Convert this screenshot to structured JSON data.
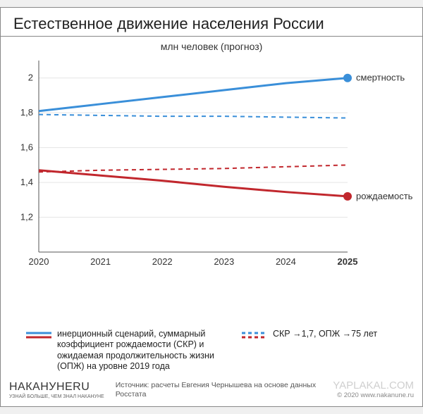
{
  "title": "Естественное движение населения России",
  "subtitle": "млн человек (прогноз)",
  "chart": {
    "type": "line",
    "background_color": "#ffffff",
    "grid_color": "#e5e5e5",
    "axis_color": "#555555",
    "x": {
      "min": 2020,
      "max": 2025,
      "ticks": [
        2020,
        2021,
        2022,
        2023,
        2024,
        2025
      ]
    },
    "y": {
      "min": 1.0,
      "max": 2.1,
      "ticks": [
        1.2,
        1.4,
        1.6,
        1.8,
        2.0
      ],
      "labels": [
        "1,2",
        "1,4",
        "1,6",
        "1,8",
        "2"
      ]
    },
    "series": [
      {
        "id": "death_inertial",
        "label": "смертность",
        "color": "#3a8fd9",
        "width": 3,
        "dash": "none",
        "marker_end": true,
        "marker_r": 6,
        "points": [
          [
            2020,
            1.81
          ],
          [
            2021,
            1.85
          ],
          [
            2022,
            1.89
          ],
          [
            2023,
            1.93
          ],
          [
            2024,
            1.97
          ],
          [
            2025,
            2.0
          ]
        ]
      },
      {
        "id": "death_scenario",
        "label": "",
        "color": "#3a8fd9",
        "width": 2,
        "dash": "6,5",
        "marker_end": false,
        "points": [
          [
            2020,
            1.79
          ],
          [
            2021,
            1.785
          ],
          [
            2022,
            1.78
          ],
          [
            2023,
            1.78
          ],
          [
            2024,
            1.775
          ],
          [
            2025,
            1.77
          ]
        ]
      },
      {
        "id": "birth_scenario",
        "label": "",
        "color": "#c1272d",
        "width": 2,
        "dash": "6,5",
        "marker_end": false,
        "points": [
          [
            2020,
            1.46
          ],
          [
            2021,
            1.47
          ],
          [
            2022,
            1.475
          ],
          [
            2023,
            1.48
          ],
          [
            2024,
            1.49
          ],
          [
            2025,
            1.5
          ]
        ]
      },
      {
        "id": "birth_inertial",
        "label": "рождаемость",
        "color": "#c1272d",
        "width": 3,
        "dash": "none",
        "marker_end": true,
        "marker_r": 6,
        "points": [
          [
            2020,
            1.47
          ],
          [
            2021,
            1.44
          ],
          [
            2022,
            1.41
          ],
          [
            2023,
            1.375
          ],
          [
            2024,
            1.345
          ],
          [
            2025,
            1.32
          ]
        ]
      }
    ],
    "label_fontsize": 13,
    "tick_fontsize": 13,
    "title_fontsize": 22
  },
  "legend": {
    "solid_label": "инерционный сценарий,\nсуммарный коэффициент рождаемости (СКР) и ожидаемая продолжительность жизни (ОПЖ) на уровне 2019 года",
    "dashed_label": "СКР →1,7, ОПЖ →75 лет",
    "blue": "#3a8fd9",
    "red": "#c1272d"
  },
  "footer": {
    "logo_left_main": "НАКАНУНЕRU",
    "logo_left_sub": "УЗНАЙ БОЛЬШЕ, ЧЕМ ЗНАЛ НАКАНУНЕ",
    "source": "Источник: расчеты Евгения Чернышева\nна основе данных Росстата",
    "logo_right_main": "YAPLAKAL.COM",
    "logo_right_sub": "© 2020 www.nakanune.ru"
  }
}
